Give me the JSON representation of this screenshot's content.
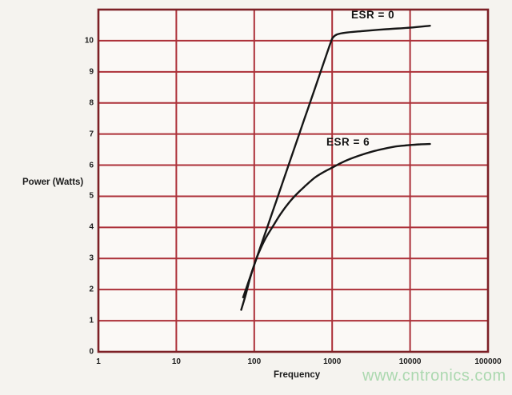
{
  "watermark": {
    "text": "www.cntronics.com",
    "color": "#abd8af"
  },
  "chart_data": {
    "type": "line",
    "title": "",
    "xlabel": "Frequency",
    "ylabel": "Power (Watts)",
    "x_scale": "log",
    "xlim": [
      1,
      100000
    ],
    "ylim": [
      0,
      11
    ],
    "x_tick_labels": [
      "1",
      "10",
      "100",
      "1000",
      "10000",
      "100000"
    ],
    "y_tick_labels": [
      "0",
      "1",
      "2",
      "3",
      "4",
      "5",
      "6",
      "7",
      "8",
      "9",
      "10"
    ],
    "grid": "major gridlines on, red; x gridlines at decades only, y gridlines every 1 watt",
    "legend_position": "inline curve labels",
    "colors": {
      "grid": "#ac3038",
      "border": "#7d2026",
      "curve": "#161616",
      "plot_background": "#fbf9f6",
      "text": "#1c1c1c"
    },
    "series": [
      {
        "name": "ESR = 0",
        "points": [
          [
            72,
            1.75
          ],
          [
            85,
            2.27
          ],
          [
            100,
            2.79
          ],
          [
            120,
            3.37
          ],
          [
            150,
            4.07
          ],
          [
            190,
            4.82
          ],
          [
            240,
            5.56
          ],
          [
            300,
            6.27
          ],
          [
            380,
            7.02
          ],
          [
            480,
            7.76
          ],
          [
            600,
            8.46
          ],
          [
            750,
            9.17
          ],
          [
            880,
            9.68
          ],
          [
            960,
            9.95
          ],
          [
            1020,
            10.1
          ],
          [
            1150,
            10.2
          ],
          [
            1500,
            10.26
          ],
          [
            2500,
            10.31
          ],
          [
            5000,
            10.37
          ],
          [
            10000,
            10.42
          ],
          [
            18000,
            10.48
          ]
        ]
      },
      {
        "name": "ESR = 6",
        "points": [
          [
            68,
            1.35
          ],
          [
            78,
            1.85
          ],
          [
            88,
            2.35
          ],
          [
            100,
            2.8
          ],
          [
            115,
            3.2
          ],
          [
            140,
            3.65
          ],
          [
            175,
            4.05
          ],
          [
            220,
            4.45
          ],
          [
            280,
            4.8
          ],
          [
            360,
            5.1
          ],
          [
            460,
            5.35
          ],
          [
            600,
            5.6
          ],
          [
            780,
            5.78
          ],
          [
            1000,
            5.92
          ],
          [
            1300,
            6.07
          ],
          [
            1700,
            6.2
          ],
          [
            2300,
            6.32
          ],
          [
            3200,
            6.43
          ],
          [
            4500,
            6.52
          ],
          [
            6500,
            6.6
          ],
          [
            9500,
            6.64
          ],
          [
            13500,
            6.67
          ],
          [
            18000,
            6.68
          ]
        ]
      }
    ]
  }
}
